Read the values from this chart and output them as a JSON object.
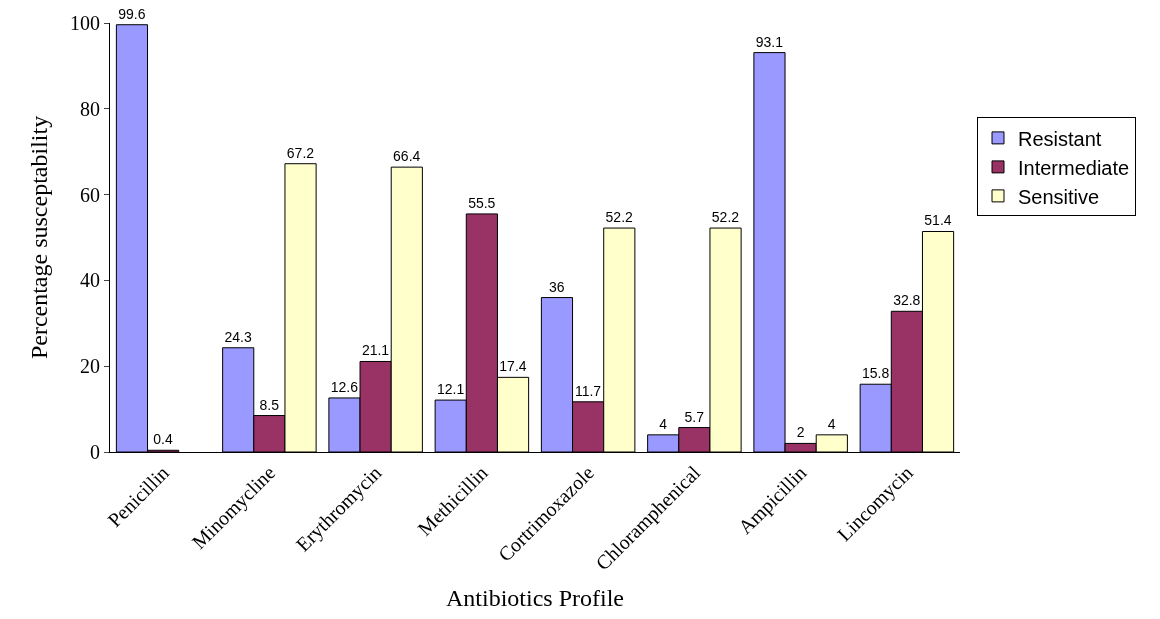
{
  "chart_data": {
    "type": "bar",
    "xlabel": "Antibiotics Profile",
    "ylabel": "Percentage susceptability",
    "categories": [
      "Penicillin",
      "Minomycline",
      "Erythromycin",
      "Methicillin",
      "Cortrimoxazole",
      "Chloramphenical",
      "Ampicillin",
      "Lincomycin"
    ],
    "series": [
      {
        "name": "Resistant",
        "color": "#9999ff",
        "values": [
          99.6,
          24.3,
          12.6,
          12.1,
          36,
          4,
          93.1,
          15.8
        ]
      },
      {
        "name": "Intermediate",
        "color": "#993366",
        "values": [
          0.4,
          8.5,
          21.1,
          55.5,
          11.7,
          5.7,
          2,
          32.8
        ]
      },
      {
        "name": "Sensitive",
        "color": "#ffffcc",
        "values": [
          null,
          67.2,
          66.4,
          17.4,
          52.2,
          52.2,
          4,
          51.4
        ]
      }
    ],
    "ylim": [
      0,
      100
    ],
    "yticks": [
      0,
      20,
      40,
      60,
      80,
      100
    ],
    "legend": "right",
    "data_labels": true
  }
}
